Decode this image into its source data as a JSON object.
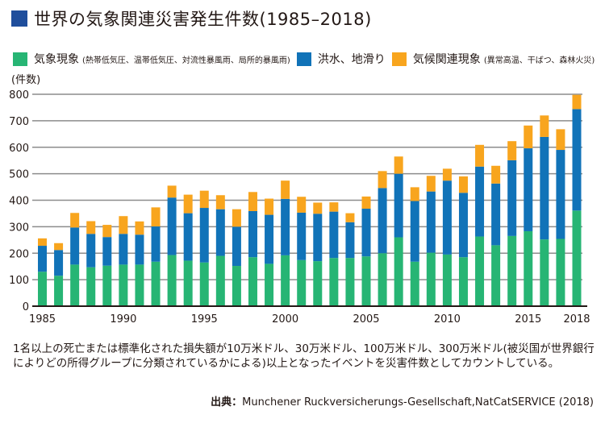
{
  "title": "世界の気象関連災害発生件数(1985–2018)",
  "colors": {
    "title_square": "#1f4e9c",
    "meteorological": "#27b574",
    "hydrological": "#1173b8",
    "climatological": "#f8a51e",
    "grid": "#8c8c8c",
    "axis": "#231815"
  },
  "legend": [
    {
      "label": "気象現象",
      "note": "(熱帯低気圧、温帯低気圧、対流性暴風雨、局所的暴風雨)",
      "color": "#27b574"
    },
    {
      "label": "洪水、地滑り",
      "note": "",
      "color": "#1173b8"
    },
    {
      "label": "気候関連現象",
      "note": "(異常高温、干ばつ、森林火災)",
      "color": "#f8a51e"
    }
  ],
  "unit_label": "(件数)",
  "footnote": "1名以上の死亡または標準化された損失額が10万米ドル、30万米ドル、100万米ドル、300万米ドル(被災国が世界銀行によりどの所得グループに分類されているかによる)以上となったイベントを災害件数としてカウントしている。",
  "source_label": "出典：",
  "source_text": "Munchener Ruckversicherungs-Gesellschaft,NatCatSERVICE (2018)",
  "chart_data": {
    "type": "bar",
    "stacked": true,
    "title": "世界の気象関連災害発生件数(1985–2018)",
    "xlabel": "",
    "ylabel": "(件数)",
    "ylim": [
      0,
      800
    ],
    "yticks": [
      0,
      100,
      200,
      300,
      400,
      500,
      600,
      700,
      800
    ],
    "xtick_labels": [
      "1985",
      "1990",
      "1995",
      "2000",
      "2005",
      "2010",
      "2015",
      "2018"
    ],
    "grid": true,
    "legend_position": "top",
    "categories": [
      1985,
      1986,
      1987,
      1988,
      1989,
      1990,
      1991,
      1992,
      1993,
      1994,
      1995,
      1996,
      1997,
      1998,
      1999,
      2000,
      2001,
      2002,
      2003,
      2004,
      2005,
      2006,
      2007,
      2008,
      2009,
      2010,
      2011,
      2012,
      2013,
      2014,
      2015,
      2016,
      2017,
      2018
    ],
    "series": [
      {
        "name": "気象現象",
        "color": "#27b574",
        "values": [
          130,
          115,
          157,
          147,
          153,
          157,
          157,
          168,
          193,
          172,
          165,
          190,
          152,
          185,
          160,
          192,
          174,
          170,
          182,
          182,
          188,
          200,
          260,
          168,
          202,
          195,
          185,
          263,
          230,
          265,
          283,
          252,
          254,
          361
        ]
      },
      {
        "name": "洪水、地滑り",
        "color": "#1173b8",
        "values": [
          98,
          97,
          140,
          126,
          108,
          116,
          113,
          133,
          217,
          179,
          206,
          176,
          148,
          174,
          185,
          213,
          179,
          179,
          175,
          135,
          180,
          246,
          240,
          229,
          231,
          279,
          243,
          264,
          233,
          286,
          313,
          387,
          336,
          383
        ]
      },
      {
        "name": "気候関連現象",
        "color": "#f8a51e",
        "values": [
          28,
          26,
          55,
          48,
          46,
          67,
          50,
          72,
          45,
          70,
          65,
          53,
          66,
          72,
          61,
          69,
          60,
          42,
          35,
          34,
          46,
          64,
          65,
          52,
          59,
          45,
          62,
          82,
          67,
          72,
          86,
          81,
          78,
          54
        ]
      }
    ]
  }
}
